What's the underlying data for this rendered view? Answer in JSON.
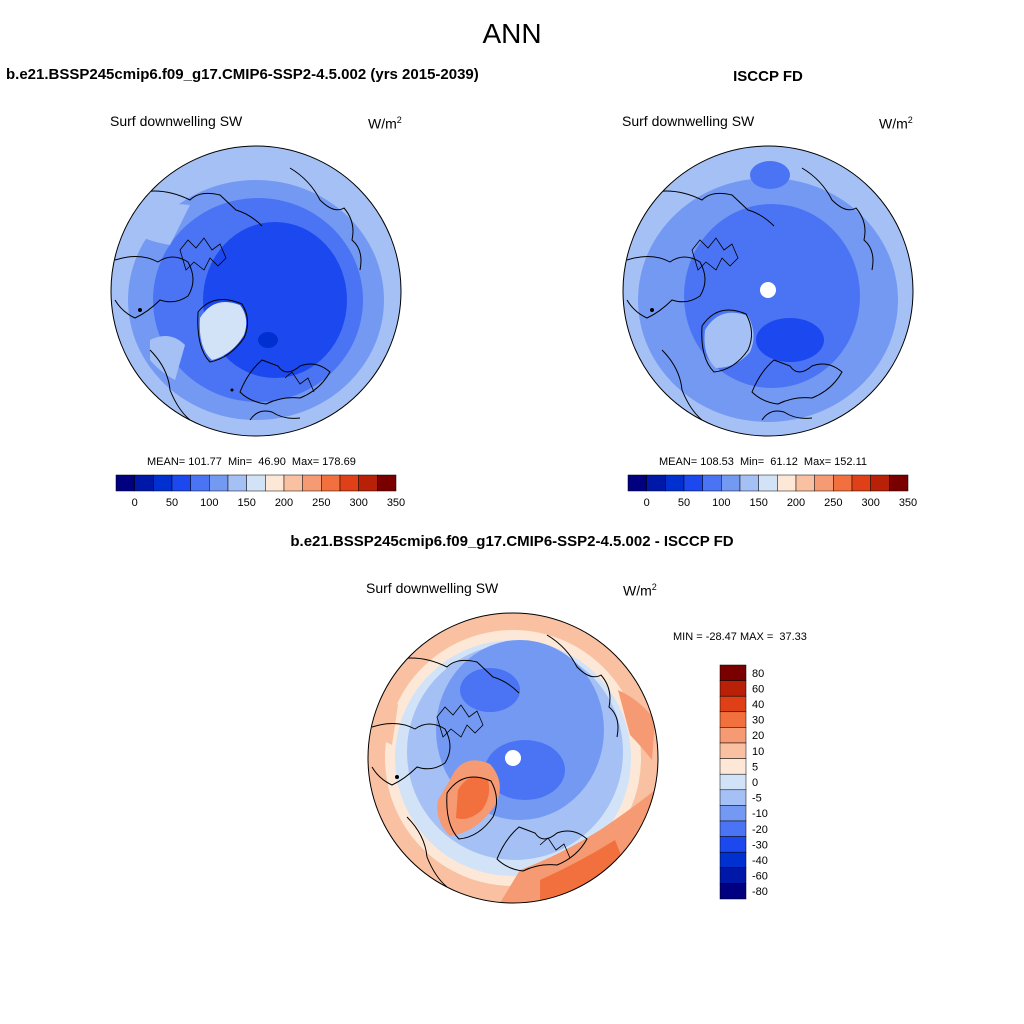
{
  "title": "ANN",
  "panels": {
    "test": {
      "title": "b.e21.BSSP245cmip6.f09_g17.CMIP6-SSP2-4.5.002 (yrs 2015-2039)",
      "variable": "Surf downwelling SW",
      "unit_base": "W/m",
      "unit_exp": "2",
      "stats": "MEAN= 101.77  Min=  46.90  Max= 178.69"
    },
    "ref": {
      "title": "ISCCP FD",
      "variable": "Surf downwelling SW",
      "unit_base": "W/m",
      "unit_exp": "2",
      "stats": "MEAN= 108.53  Min=  61.12  Max= 152.11"
    },
    "diff": {
      "title": "b.e21.BSSP245cmip6.f09_g17.CMIP6-SSP2-4.5.002 - ISCCP FD",
      "variable": "Surf downwelling SW",
      "unit_base": "W/m",
      "unit_exp": "2",
      "stats": "MIN = -28.47 MAX =  37.33"
    }
  },
  "colorbar_main": {
    "colors": [
      "#000080",
      "#0018a8",
      "#0030d0",
      "#1c48f0",
      "#4a74f4",
      "#7499f3",
      "#a5c0f4",
      "#d2e3f8",
      "#fde8d8",
      "#f9c1a1",
      "#f59a72",
      "#f2703d",
      "#e04018",
      "#b82008",
      "#7a0000"
    ],
    "tick_labels": [
      "0",
      "50",
      "100",
      "150",
      "200",
      "250",
      "300",
      "350"
    ]
  },
  "colorbar_diff": {
    "colors": [
      "#000080",
      "#0018a8",
      "#0030d0",
      "#1c48f0",
      "#4a74f4",
      "#7499f3",
      "#a5c0f4",
      "#d2e3f8",
      "#fde8d8",
      "#f9c1a1",
      "#f59a72",
      "#f2703d",
      "#e04018",
      "#b82008",
      "#7a0000"
    ],
    "tick_labels": [
      "80",
      "60",
      "40",
      "30",
      "20",
      "10",
      "5",
      "0",
      "-5",
      "-10",
      "-20",
      "-30",
      "-40",
      "-60",
      "-80"
    ]
  }
}
